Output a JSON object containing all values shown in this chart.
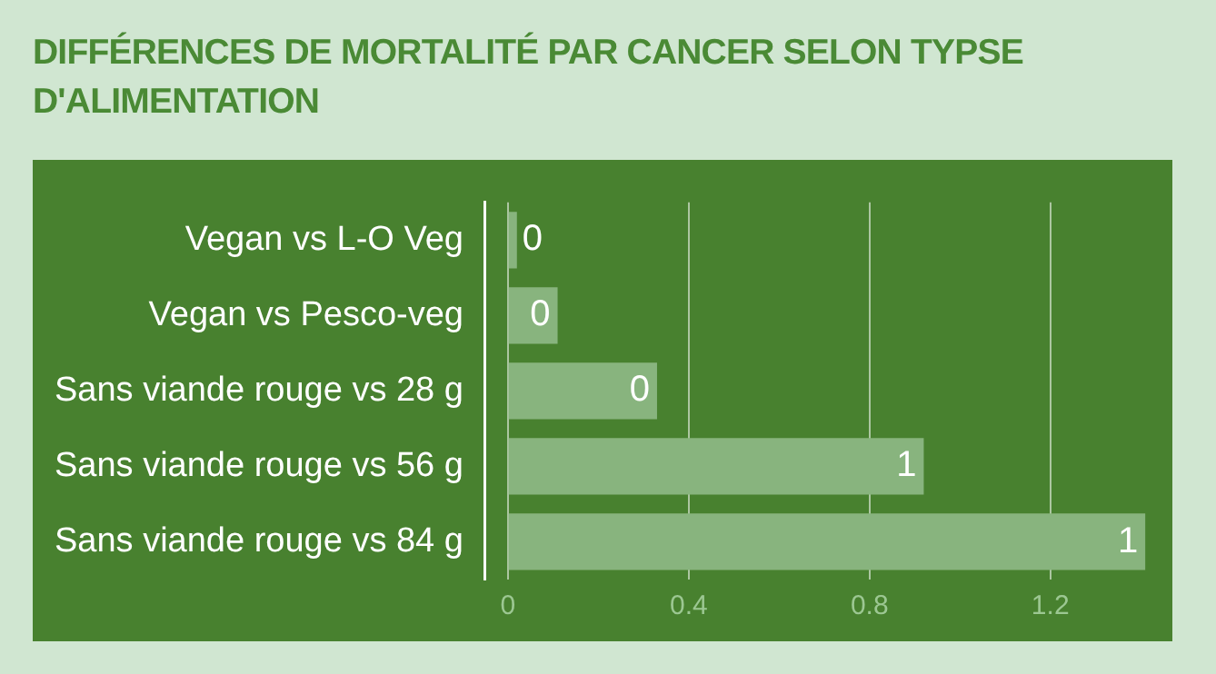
{
  "chart_data": {
    "type": "bar",
    "orientation": "horizontal",
    "title": "DIFFÉRENCES DE MORTALITÉ PAR CANCER SELON TYPSE D'ALIMENTATION",
    "categories": [
      "Vegan vs L-O Veg",
      "Vegan vs Pesco-veg",
      "Sans viande rouge vs 28 g",
      "Sans viande rouge vs 56 g",
      "Sans viande rouge vs 84 g"
    ],
    "values": [
      0.02,
      0.11,
      0.33,
      0.92,
      1.41
    ],
    "value_labels": [
      "0",
      "0",
      "0",
      "1",
      "1"
    ],
    "color": "#88b47e",
    "xlim": [
      -0.05,
      1.47
    ],
    "xticks": [
      0,
      0.4,
      0.8,
      1.2
    ],
    "grid": "x"
  }
}
